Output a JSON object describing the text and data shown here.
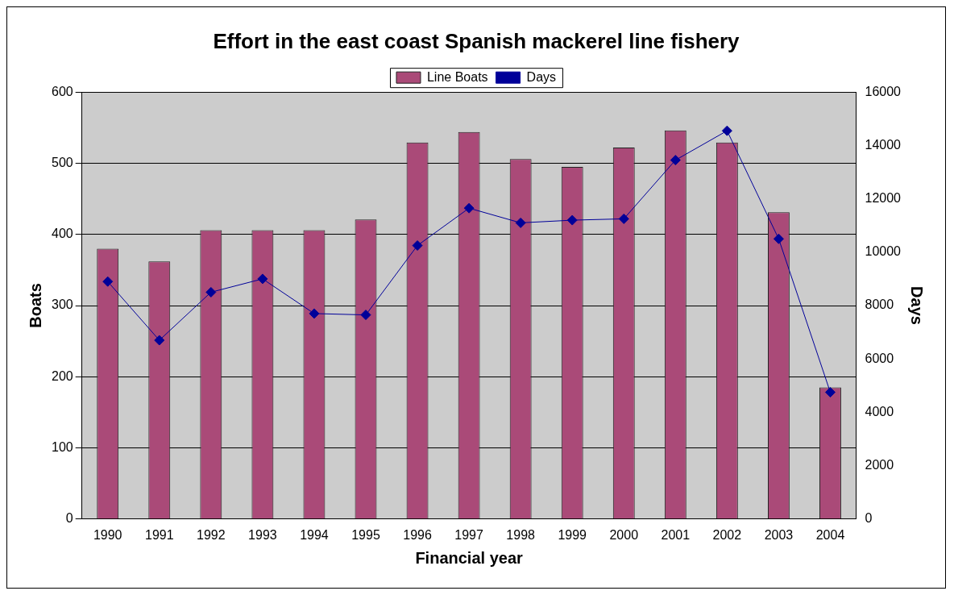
{
  "chart_data": {
    "type": "bar",
    "title": "Effort in the east coast Spanish mackerel line fishery",
    "xlabel": "Financial year",
    "ylabel": "Boats",
    "y2label": "Days",
    "categories": [
      "1990",
      "1991",
      "1992",
      "1993",
      "1994",
      "1995",
      "1996",
      "1997",
      "1998",
      "1999",
      "2000",
      "2001",
      "2002",
      "2003",
      "2004"
    ],
    "series": [
      {
        "name": "Line Boats",
        "color": "#aa4a78",
        "values": [
          380,
          362,
          406,
          406,
          406,
          421,
          529,
          544,
          506,
          495,
          522,
          546,
          529,
          431,
          185
        ]
      },
      {
        "name": "Days",
        "type": "line",
        "axis": "y2",
        "color": "#000099",
        "values": [
          8900,
          6700,
          8500,
          9000,
          7700,
          7650,
          10250,
          11650,
          11100,
          11200,
          11250,
          13450,
          14550,
          10500,
          4750
        ]
      }
    ],
    "ylim": [
      0,
      600
    ],
    "yticks": [
      0,
      100,
      200,
      300,
      400,
      500,
      600
    ],
    "y2lim": [
      0,
      16000
    ],
    "y2ticks": [
      0,
      2000,
      4000,
      6000,
      8000,
      10000,
      12000,
      14000,
      16000
    ],
    "grid": "y",
    "legend": "top",
    "marker": "diamond",
    "line_style": "solid"
  }
}
